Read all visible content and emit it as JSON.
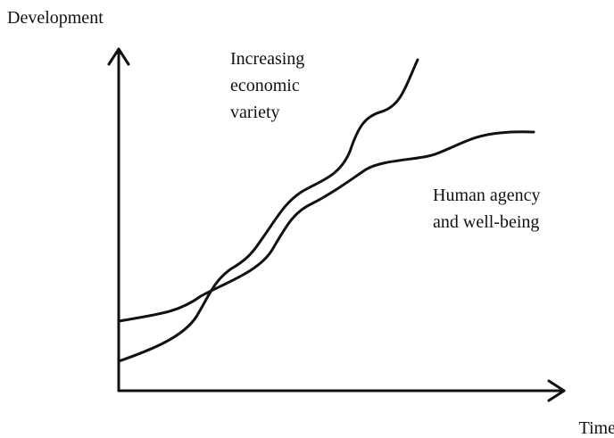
{
  "axes": {
    "y_label": "Development",
    "x_label": "Time"
  },
  "curves": [
    {
      "label_lines": [
        "Increasing",
        "economic",
        "variety"
      ]
    },
    {
      "label_lines": [
        "Human agency",
        "and well-being"
      ]
    }
  ]
}
